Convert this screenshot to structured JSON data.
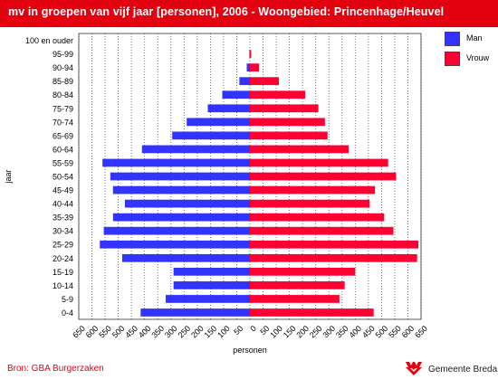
{
  "title": "mv in groepen van vijf jaar [personen], 2006 - Woongebied: Princenhage/Heuvel",
  "source": "Bron: GBA Burgerzaken",
  "brand": {
    "name": "Gemeente Breda",
    "logo_icon": "gemeente-breda-logo-icon"
  },
  "colors": {
    "title_bg": "#e3000f",
    "man": "#3333ff",
    "vrouw": "#ff0033",
    "source_text": "#e3000f"
  },
  "chart_data": {
    "type": "bar",
    "orientation": "horizontal-population-pyramid",
    "ylabel": "jaar",
    "xlabel": "personen",
    "xlim": [
      -650,
      650
    ],
    "x_ticks": [
      "650",
      "600",
      "550",
      "500",
      "450",
      "400",
      "350",
      "300",
      "250",
      "200",
      "150",
      "100",
      "50",
      "0",
      "50",
      "100",
      "150",
      "200",
      "250",
      "300",
      "350",
      "400",
      "450",
      "500",
      "550",
      "600",
      "650"
    ],
    "categories": [
      "100 en ouder",
      "95-99",
      "90-94",
      "85-89",
      "80-84",
      "75-79",
      "70-74",
      "65-69",
      "60-64",
      "55-59",
      "50-54",
      "45-49",
      "40-44",
      "35-39",
      "30-34",
      "25-29",
      "20-24",
      "15-19",
      "10-14",
      "5-9",
      "0-4"
    ],
    "series": [
      {
        "name": "Man",
        "values": [
          0,
          2,
          12,
          40,
          105,
          160,
          240,
          295,
          410,
          560,
          530,
          520,
          475,
          520,
          555,
          570,
          485,
          290,
          290,
          320,
          415
        ]
      },
      {
        "name": "Vrouw",
        "values": [
          0,
          5,
          35,
          110,
          210,
          260,
          285,
          295,
          375,
          525,
          555,
          475,
          455,
          510,
          545,
          640,
          635,
          400,
          360,
          340,
          470
        ]
      }
    ],
    "legend": {
      "position": "top-right",
      "items": [
        "Man",
        "Vrouw"
      ]
    },
    "grid": {
      "x": true,
      "y": false
    }
  }
}
